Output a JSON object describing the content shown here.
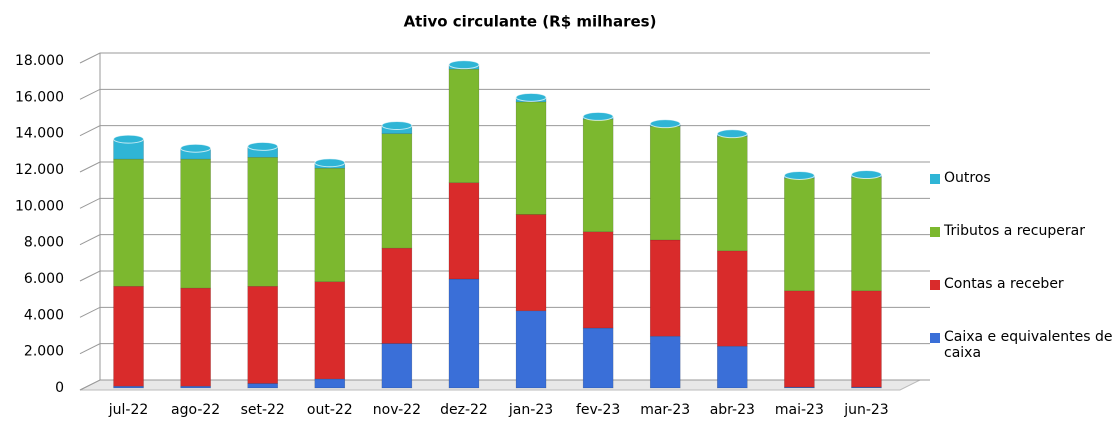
{
  "chart_data": {
    "type": "bar",
    "stacked": true,
    "title": "Ativo circulante  (R$ milhares)",
    "categories": [
      "jul-22",
      "ago-22",
      "set-22",
      "out-22",
      "nov-22",
      "dez-22",
      "jan-23",
      "fev-23",
      "mar-23",
      "abr-23",
      "mai-23",
      "jun-23"
    ],
    "series": [
      {
        "name": "Caixa e equivalentes de caixa",
        "color": "#3a6fd8",
        "values": [
          100,
          100,
          250,
          500,
          2450,
          6000,
          4250,
          3300,
          2850,
          2300,
          50,
          50
        ]
      },
      {
        "name": "Contas a receber",
        "color": "#d92b2b",
        "values": [
          5500,
          5400,
          5350,
          5350,
          5250,
          5300,
          5300,
          5300,
          5300,
          5250,
          5300,
          5300
        ]
      },
      {
        "name": "Tributos a recuperar",
        "color": "#7cb82f",
        "values": [
          7000,
          7100,
          7100,
          6250,
          6300,
          6250,
          6200,
          6200,
          6250,
          6300,
          6200,
          6250
        ]
      },
      {
        "name": "Outros",
        "color": "#2fb5d6",
        "values": [
          1100,
          600,
          600,
          300,
          450,
          250,
          250,
          150,
          150,
          150,
          150,
          150
        ]
      }
    ],
    "ylim": [
      0,
      18000
    ],
    "yticks": [
      0,
      {
        "value": 2000,
        "label": "2.000"
      },
      {
        "value": 4000,
        "label": "4.000"
      },
      {
        "value": 6000,
        "label": "6.000"
      },
      {
        "value": 8000,
        "label": "8.000"
      },
      {
        "value": 10000,
        "label": "10.000"
      },
      {
        "value": 12000,
        "label": "12.000"
      },
      {
        "value": 14000,
        "label": "14.000"
      },
      {
        "value": 16000,
        "label": "16.000"
      },
      {
        "value": 18000,
        "label": "18.000"
      }
    ],
    "grid": true,
    "legend": "right"
  }
}
